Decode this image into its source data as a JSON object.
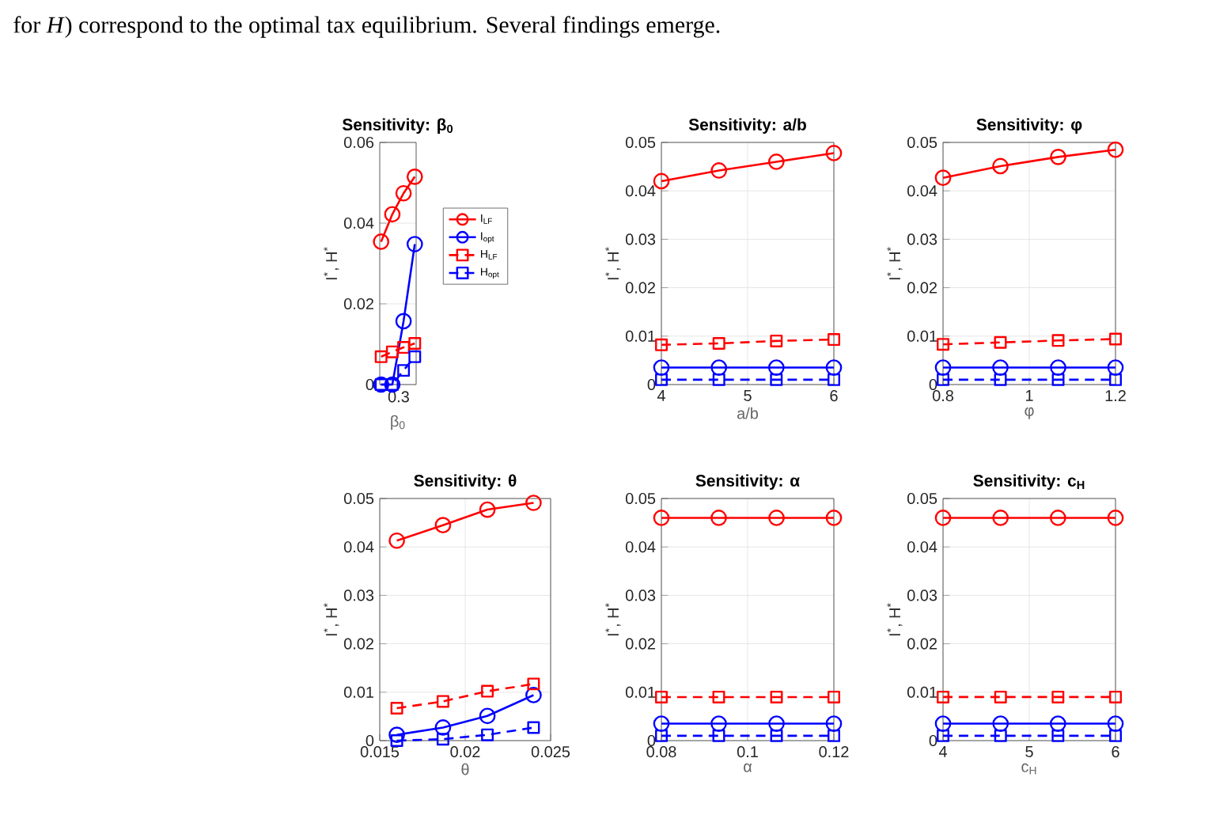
{
  "chart_data": [
    {
      "type": "line",
      "title": "Sensitivity: β$_{0}$",
      "xlabel": "β$_{0}$",
      "ylabel": "I$^{*}$, H$^{*}$",
      "annotations": [
        "for *H*) correspond to the optimal tax equilibrium. Several findings emerge.",
        "0.3"
      ],
      "categories": [
        null,
        null,
        null,
        null
      ],
      "ylim": [
        0,
        0.06
      ],
      "yticks": [
        0,
        0.02,
        0.04,
        0.06
      ],
      "grid": "y",
      "legend": "right",
      "series": [
        {
          "name": "I$_{LF}$",
          "color": "#ff0000",
          "marker": "circle",
          "line_style": "solid",
          "values": [
            0.0354,
            0.0422,
            0.0474,
            0.0515
          ]
        },
        {
          "name": "I$_{opt}$",
          "color": "#0000ff",
          "marker": "circle",
          "line_style": "solid",
          "values": [
            0.0,
            0.0,
            0.0157,
            0.0348
          ]
        },
        {
          "name": "H$_{LF}$",
          "color": "#ff0000",
          "marker": "square",
          "line_style": "dashed",
          "values": [
            0.0069,
            0.0081,
            0.0092,
            0.0102
          ]
        },
        {
          "name": "H$_{opt}$",
          "color": "#0000ff",
          "marker": "square",
          "line_style": "dashed",
          "values": [
            0.0,
            0.0,
            0.0035,
            0.0069
          ]
        }
      ]
    },
    {
      "type": "line",
      "title": "Sensitivity: a/b",
      "xlabel": "a/b",
      "ylabel": "I$^{*}$, H$^{*}$",
      "x": [
        4,
        4.667,
        5.333,
        6
      ],
      "xlim": [
        4,
        6
      ],
      "xticks": [
        4,
        5,
        6
      ],
      "ylim": [
        0,
        0.05
      ],
      "yticks": [
        0,
        0.01,
        0.02,
        0.03,
        0.04,
        0.05
      ],
      "grid": true,
      "series": [
        {
          "color": "#ff0000",
          "marker": "circle",
          "line_style": "solid",
          "values": [
            0.042,
            0.0442,
            0.046,
            0.0478
          ]
        },
        {
          "color": "#0000ff",
          "marker": "circle",
          "line_style": "solid",
          "values": [
            0.0035,
            0.0035,
            0.0035,
            0.0035
          ]
        },
        {
          "color": "#ff0000",
          "marker": "square",
          "line_style": "dashed",
          "values": [
            0.0082,
            0.0085,
            0.009,
            0.0093
          ]
        },
        {
          "color": "#0000ff",
          "marker": "square",
          "line_style": "dashed",
          "values": [
            0.001,
            0.001,
            0.001,
            0.001
          ]
        }
      ]
    },
    {
      "type": "line",
      "title": "Sensitivity: φ",
      "xlabel": "φ",
      "ylabel": "I$^{*}$, H$^{*}$",
      "x": [
        0.8,
        0.933,
        1.067,
        1.2
      ],
      "xlim": [
        0.8,
        1.2
      ],
      "xticks": [
        0.8,
        1,
        1.2
      ],
      "ylim": [
        0,
        0.05
      ],
      "yticks": [
        0,
        0.01,
        0.02,
        0.03,
        0.04,
        0.05
      ],
      "grid": true,
      "series": [
        {
          "color": "#ff0000",
          "marker": "circle",
          "line_style": "solid",
          "values": [
            0.0427,
            0.0451,
            0.047,
            0.0485
          ]
        },
        {
          "color": "#0000ff",
          "marker": "circle",
          "line_style": "solid",
          "values": [
            0.0035,
            0.0035,
            0.0035,
            0.0035
          ]
        },
        {
          "color": "#ff0000",
          "marker": "square",
          "line_style": "dashed",
          "values": [
            0.0083,
            0.0087,
            0.0091,
            0.0094
          ]
        },
        {
          "color": "#0000ff",
          "marker": "square",
          "line_style": "dashed",
          "values": [
            0.001,
            0.001,
            0.001,
            0.001
          ]
        }
      ]
    },
    {
      "type": "line",
      "title": "Sensitivity: θ",
      "xlabel": "θ",
      "ylabel": "I$^{*}$, H$^{*}$",
      "x": [
        0.016,
        0.0187,
        0.0213,
        0.024
      ],
      "xlim": [
        0.015,
        0.025
      ],
      "xticks": [
        0.015,
        0.02,
        0.025
      ],
      "ylim": [
        0,
        0.05
      ],
      "yticks": [
        0,
        0.01,
        0.02,
        0.03,
        0.04,
        0.05
      ],
      "grid": true,
      "series": [
        {
          "color": "#ff0000",
          "marker": "circle",
          "line_style": "solid",
          "values": [
            0.0413,
            0.0445,
            0.0477,
            0.0491
          ]
        },
        {
          "color": "#0000ff",
          "marker": "circle",
          "line_style": "solid",
          "values": [
            0.0012,
            0.0027,
            0.0051,
            0.0094
          ]
        },
        {
          "color": "#ff0000",
          "marker": "square",
          "line_style": "dashed",
          "values": [
            0.0067,
            0.0081,
            0.0102,
            0.0117
          ]
        },
        {
          "color": "#0000ff",
          "marker": "square",
          "line_style": "dashed",
          "values": [
            0.0,
            0.0003,
            0.0012,
            0.0027
          ]
        }
      ]
    },
    {
      "type": "line",
      "title": "Sensitivity: α",
      "xlabel": "α",
      "ylabel": "I$^{*}$, H$^{*}$",
      "x": [
        0.08,
        0.0933,
        0.1067,
        0.12
      ],
      "xlim": [
        0.08,
        0.12
      ],
      "xticks": [
        0.08,
        0.1,
        0.12
      ],
      "ylim": [
        0,
        0.05
      ],
      "yticks": [
        0,
        0.01,
        0.02,
        0.03,
        0.04,
        0.05
      ],
      "grid": true,
      "series": [
        {
          "color": "#ff0000",
          "marker": "circle",
          "line_style": "solid",
          "values": [
            0.046,
            0.046,
            0.046,
            0.046
          ]
        },
        {
          "color": "#0000ff",
          "marker": "circle",
          "line_style": "solid",
          "values": [
            0.0035,
            0.0035,
            0.0035,
            0.0035
          ]
        },
        {
          "color": "#ff0000",
          "marker": "square",
          "line_style": "dashed",
          "values": [
            0.009,
            0.009,
            0.009,
            0.009
          ]
        },
        {
          "color": "#0000ff",
          "marker": "square",
          "line_style": "dashed",
          "values": [
            0.001,
            0.001,
            0.001,
            0.001
          ]
        }
      ]
    },
    {
      "type": "line",
      "title": "Sensitivity: c$_{H}$",
      "xlabel": "c$_{H}$",
      "ylabel": "I$^{*}$, H$^{*}$",
      "x": [
        4,
        4.667,
        5.333,
        6
      ],
      "xlim": [
        4,
        6
      ],
      "xticks": [
        4,
        5,
        6
      ],
      "ylim": [
        0,
        0.05
      ],
      "yticks": [
        0,
        0.01,
        0.02,
        0.03,
        0.04,
        0.05
      ],
      "grid": true,
      "series": [
        {
          "color": "#ff0000",
          "marker": "circle",
          "line_style": "solid",
          "values": [
            0.046,
            0.046,
            0.046,
            0.046
          ]
        },
        {
          "color": "#0000ff",
          "marker": "circle",
          "line_style": "solid",
          "values": [
            0.0035,
            0.0035,
            0.0035,
            0.0035
          ]
        },
        {
          "color": "#ff0000",
          "marker": "square",
          "line_style": "dashed",
          "values": [
            0.009,
            0.009,
            0.009,
            0.009
          ]
        },
        {
          "color": "#0000ff",
          "marker": "square",
          "line_style": "dashed",
          "values": [
            0.001,
            0.001,
            0.001,
            0.001
          ]
        }
      ]
    }
  ]
}
